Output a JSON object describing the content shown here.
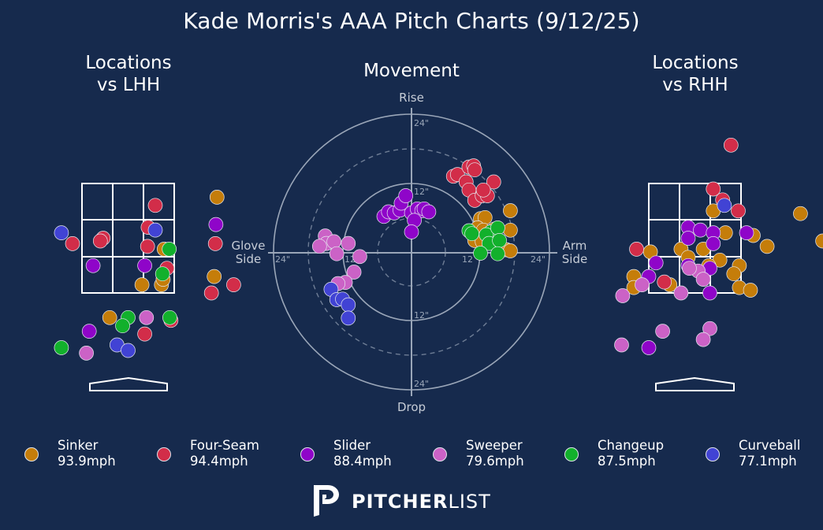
{
  "title": "Kade Morris's AAA Pitch Charts (9/12/25)",
  "panels": {
    "lhh": {
      "line1": "Locations",
      "line2": "vs LHH"
    },
    "movement": {
      "title": "Movement"
    },
    "rhh": {
      "line1": "Locations",
      "line2": "vs RHH"
    }
  },
  "movement_labels": {
    "rise": "Rise",
    "drop": "Drop",
    "glove_line1": "Glove",
    "glove_line2": "Side",
    "arm_line1": "Arm",
    "arm_line2": "Side",
    "tick_24_top": "24\"",
    "tick_12_top": "12\"",
    "tick_12_bottom": "12\"",
    "tick_24_bottom": "24\"",
    "tick_24_left": "24\"",
    "tick_12_left": "12",
    "tick_12_right": "12",
    "tick_24_right": "24\""
  },
  "colors": {
    "background": "#162a4d",
    "Sinker": "#c57d0a",
    "Four-Seam": "#d22d49",
    "Slider": "#8f05c9",
    "Sweeper": "#cb62c6",
    "Changeup": "#12b02c",
    "Curveball": "#4143d4"
  },
  "legend": [
    {
      "pitch": "Sinker",
      "speed": "93.9mph",
      "color": "#c57d0a"
    },
    {
      "pitch": "Four-Seam",
      "speed": "94.4mph",
      "color": "#d22d49"
    },
    {
      "pitch": "Slider",
      "speed": "88.4mph",
      "color": "#8f05c9"
    },
    {
      "pitch": "Sweeper",
      "speed": "79.6mph",
      "color": "#cb62c6"
    },
    {
      "pitch": "Changeup",
      "speed": "87.5mph",
      "color": "#12b02c"
    },
    {
      "pitch": "Curveball",
      "speed": "77.1mph",
      "color": "#4143d4"
    }
  ],
  "brand": {
    "bold": "PITCHER",
    "light": "LIST",
    "logo": "pitcherlist-p-icon"
  },
  "chart_data": [
    {
      "type": "scatter",
      "title": "Locations vs LHH",
      "xlim": [
        -1.9,
        2.4
      ],
      "ylim": [
        -0.3,
        4.5
      ],
      "grid": false,
      "strike_zone": {
        "x": [
          -0.83,
          0.83
        ],
        "z": [
          1.5,
          3.5
        ],
        "divisions": 3
      },
      "series": [
        {
          "name": "Sinker",
          "points": [
            [
              1.6,
              3.25
            ],
            [
              0.65,
              2.3
            ],
            [
              0.6,
              1.65
            ],
            [
              0.63,
              1.75
            ],
            [
              1.55,
              1.8
            ],
            [
              0.25,
              1.65
            ],
            [
              -0.33,
              1.05
            ]
          ]
        },
        {
          "name": "Four-Seam",
          "points": [
            [
              0.49,
              3.1
            ],
            [
              0.36,
              2.7
            ],
            [
              -0.45,
              2.5
            ],
            [
              -1.0,
              2.4
            ],
            [
              -0.5,
              2.45
            ],
            [
              0.35,
              2.35
            ],
            [
              1.57,
              2.4
            ],
            [
              0.7,
              1.95
            ],
            [
              1.9,
              1.65
            ],
            [
              1.5,
              1.5
            ],
            [
              0.77,
              1.0
            ],
            [
              0.3,
              0.75
            ]
          ]
        },
        {
          "name": "Slider",
          "points": [
            [
              1.58,
              2.75
            ],
            [
              -0.63,
              2.0
            ],
            [
              0.3,
              2.0
            ],
            [
              -0.7,
              0.8
            ]
          ]
        },
        {
          "name": "Sweeper",
          "points": [
            [
              0.33,
              1.05
            ],
            [
              -0.75,
              0.4
            ]
          ]
        },
        {
          "name": "Changeup",
          "points": [
            [
              0.74,
              2.3
            ],
            [
              0.62,
              1.85
            ],
            [
              0.0,
              1.05
            ],
            [
              0.75,
              1.05
            ],
            [
              -0.1,
              0.9
            ],
            [
              -1.2,
              0.5
            ]
          ]
        },
        {
          "name": "Curveball",
          "points": [
            [
              0.49,
              2.65
            ],
            [
              -1.2,
              2.6
            ],
            [
              -0.2,
              0.55
            ],
            [
              0.0,
              0.45
            ]
          ]
        }
      ]
    },
    {
      "type": "scatter",
      "title": "Movement",
      "xlabel_left": "Glove Side",
      "xlabel_right": "Arm Side",
      "ylabel_top": "Rise",
      "ylabel_bottom": "Drop",
      "xlim": [
        -24,
        24
      ],
      "ylim": [
        -24,
        24
      ],
      "rings": [
        6,
        12,
        18,
        24
      ],
      "units": "inches",
      "series": [
        {
          "name": "Sinker",
          "points": [
            [
              12,
              5.8
            ],
            [
              12.8,
              6
            ],
            [
              11.5,
              4.2
            ],
            [
              12.5,
              3.8
            ],
            [
              14.5,
              4
            ],
            [
              17.2,
              7.2
            ],
            [
              17.2,
              3.8
            ],
            [
              11,
              2
            ],
            [
              12.3,
              1.8
            ],
            [
              15,
              1.5
            ],
            [
              16.5,
              0.4
            ],
            [
              17.2,
              0.2
            ],
            [
              13.5,
              2.5
            ]
          ]
        },
        {
          "name": "Four-Seam",
          "points": [
            [
              7.3,
              13.2
            ],
            [
              8,
              13.5
            ],
            [
              10,
              14.8
            ],
            [
              10.8,
              15
            ],
            [
              11,
              14.3
            ],
            [
              9.5,
              12.2
            ],
            [
              10,
              10.8
            ],
            [
              11,
              9
            ],
            [
              12.3,
              9.8
            ],
            [
              13.2,
              9.8
            ],
            [
              14.3,
              12.2
            ],
            [
              12.5,
              10.8
            ]
          ]
        },
        {
          "name": "Slider",
          "points": [
            [
              -4.8,
              6.2
            ],
            [
              -4,
              7
            ],
            [
              -3,
              6.8
            ],
            [
              -2,
              7.3
            ],
            [
              -1.8,
              8.5
            ],
            [
              -1,
              9.8
            ],
            [
              0,
              6.8
            ],
            [
              1,
              7.5
            ],
            [
              1.8,
              7.2
            ],
            [
              2.2,
              7.5
            ],
            [
              3,
              7
            ],
            [
              0.5,
              5.5
            ],
            [
              0,
              3.5
            ]
          ]
        },
        {
          "name": "Sweeper",
          "points": [
            [
              -15,
              2.8
            ],
            [
              -14.8,
              1.5
            ],
            [
              -16,
              1
            ],
            [
              -13.5,
              1.8
            ],
            [
              -11,
              1.5
            ],
            [
              -13,
              -0.3
            ],
            [
              -9,
              -0.8
            ],
            [
              -10,
              -3.5
            ],
            [
              -11.5,
              -5.3
            ],
            [
              -12.8,
              -5.5
            ]
          ]
        },
        {
          "name": "Changeup",
          "points": [
            [
              10,
              3.7
            ],
            [
              13.8,
              3.5
            ],
            [
              10.5,
              3.2
            ],
            [
              13,
              3
            ],
            [
              15,
              4.2
            ],
            [
              13.5,
              1.5
            ],
            [
              15.3,
              2
            ],
            [
              15,
              -0.3
            ],
            [
              12,
              -0.2
            ]
          ]
        },
        {
          "name": "Curveball",
          "points": [
            [
              -14,
              -6.5
            ],
            [
              -13,
              -8.3
            ],
            [
              -12,
              -8.2
            ],
            [
              -11,
              -9.2
            ],
            [
              -11,
              -11.5
            ]
          ]
        }
      ]
    },
    {
      "type": "scatter",
      "title": "Locations vs RHH",
      "xlim": [
        -1.9,
        2.4
      ],
      "ylim": [
        -0.3,
        4.5
      ],
      "grid": false,
      "strike_zone": {
        "x": [
          -0.83,
          0.83
        ],
        "z": [
          1.5,
          3.5
        ],
        "divisions": 3
      },
      "series": [
        {
          "name": "Sinker",
          "points": [
            [
              0.33,
              3.0
            ],
            [
              1.9,
              2.95
            ],
            [
              0.55,
              2.6
            ],
            [
              1.05,
              2.55
            ],
            [
              2.3,
              2.45
            ],
            [
              -0.25,
              2.3
            ],
            [
              0.15,
              2.3
            ],
            [
              1.3,
              2.35
            ],
            [
              -0.8,
              2.25
            ],
            [
              -0.12,
              2.15
            ],
            [
              0.45,
              2.1
            ],
            [
              0.8,
              2.0
            ],
            [
              0.25,
              2.0
            ],
            [
              0.7,
              1.85
            ],
            [
              -1.1,
              1.8
            ],
            [
              0.8,
              1.6
            ],
            [
              1.0,
              1.55
            ],
            [
              -0.45,
              1.65
            ],
            [
              -1.1,
              1.6
            ]
          ]
        },
        {
          "name": "Four-Seam",
          "points": [
            [
              0.65,
              4.2
            ],
            [
              0.33,
              3.4
            ],
            [
              0.5,
              3.2
            ],
            [
              0.78,
              3.0
            ],
            [
              -1.05,
              2.3
            ],
            [
              -0.55,
              1.7
            ]
          ]
        },
        {
          "name": "Slider",
          "points": [
            [
              -0.12,
              2.7
            ],
            [
              0.1,
              2.65
            ],
            [
              0.33,
              2.6
            ],
            [
              0.93,
              2.6
            ],
            [
              -0.12,
              2.5
            ],
            [
              0.33,
              2.4
            ],
            [
              -0.7,
              2.05
            ],
            [
              -0.12,
              2.0
            ],
            [
              0.27,
              1.95
            ],
            [
              -0.83,
              1.8
            ],
            [
              0.27,
              1.5
            ],
            [
              -0.83,
              0.5
            ]
          ]
        },
        {
          "name": "Sweeper",
          "points": [
            [
              0.06,
              1.9
            ],
            [
              -0.1,
              1.95
            ],
            [
              0.15,
              1.75
            ],
            [
              -0.95,
              1.65
            ],
            [
              -0.25,
              1.5
            ],
            [
              -1.3,
              1.45
            ],
            [
              0.27,
              0.85
            ],
            [
              -0.58,
              0.8
            ],
            [
              0.15,
              0.65
            ],
            [
              -1.32,
              0.55
            ]
          ]
        },
        {
          "name": "Curveball",
          "points": [
            [
              0.53,
              3.1
            ]
          ]
        }
      ]
    }
  ]
}
